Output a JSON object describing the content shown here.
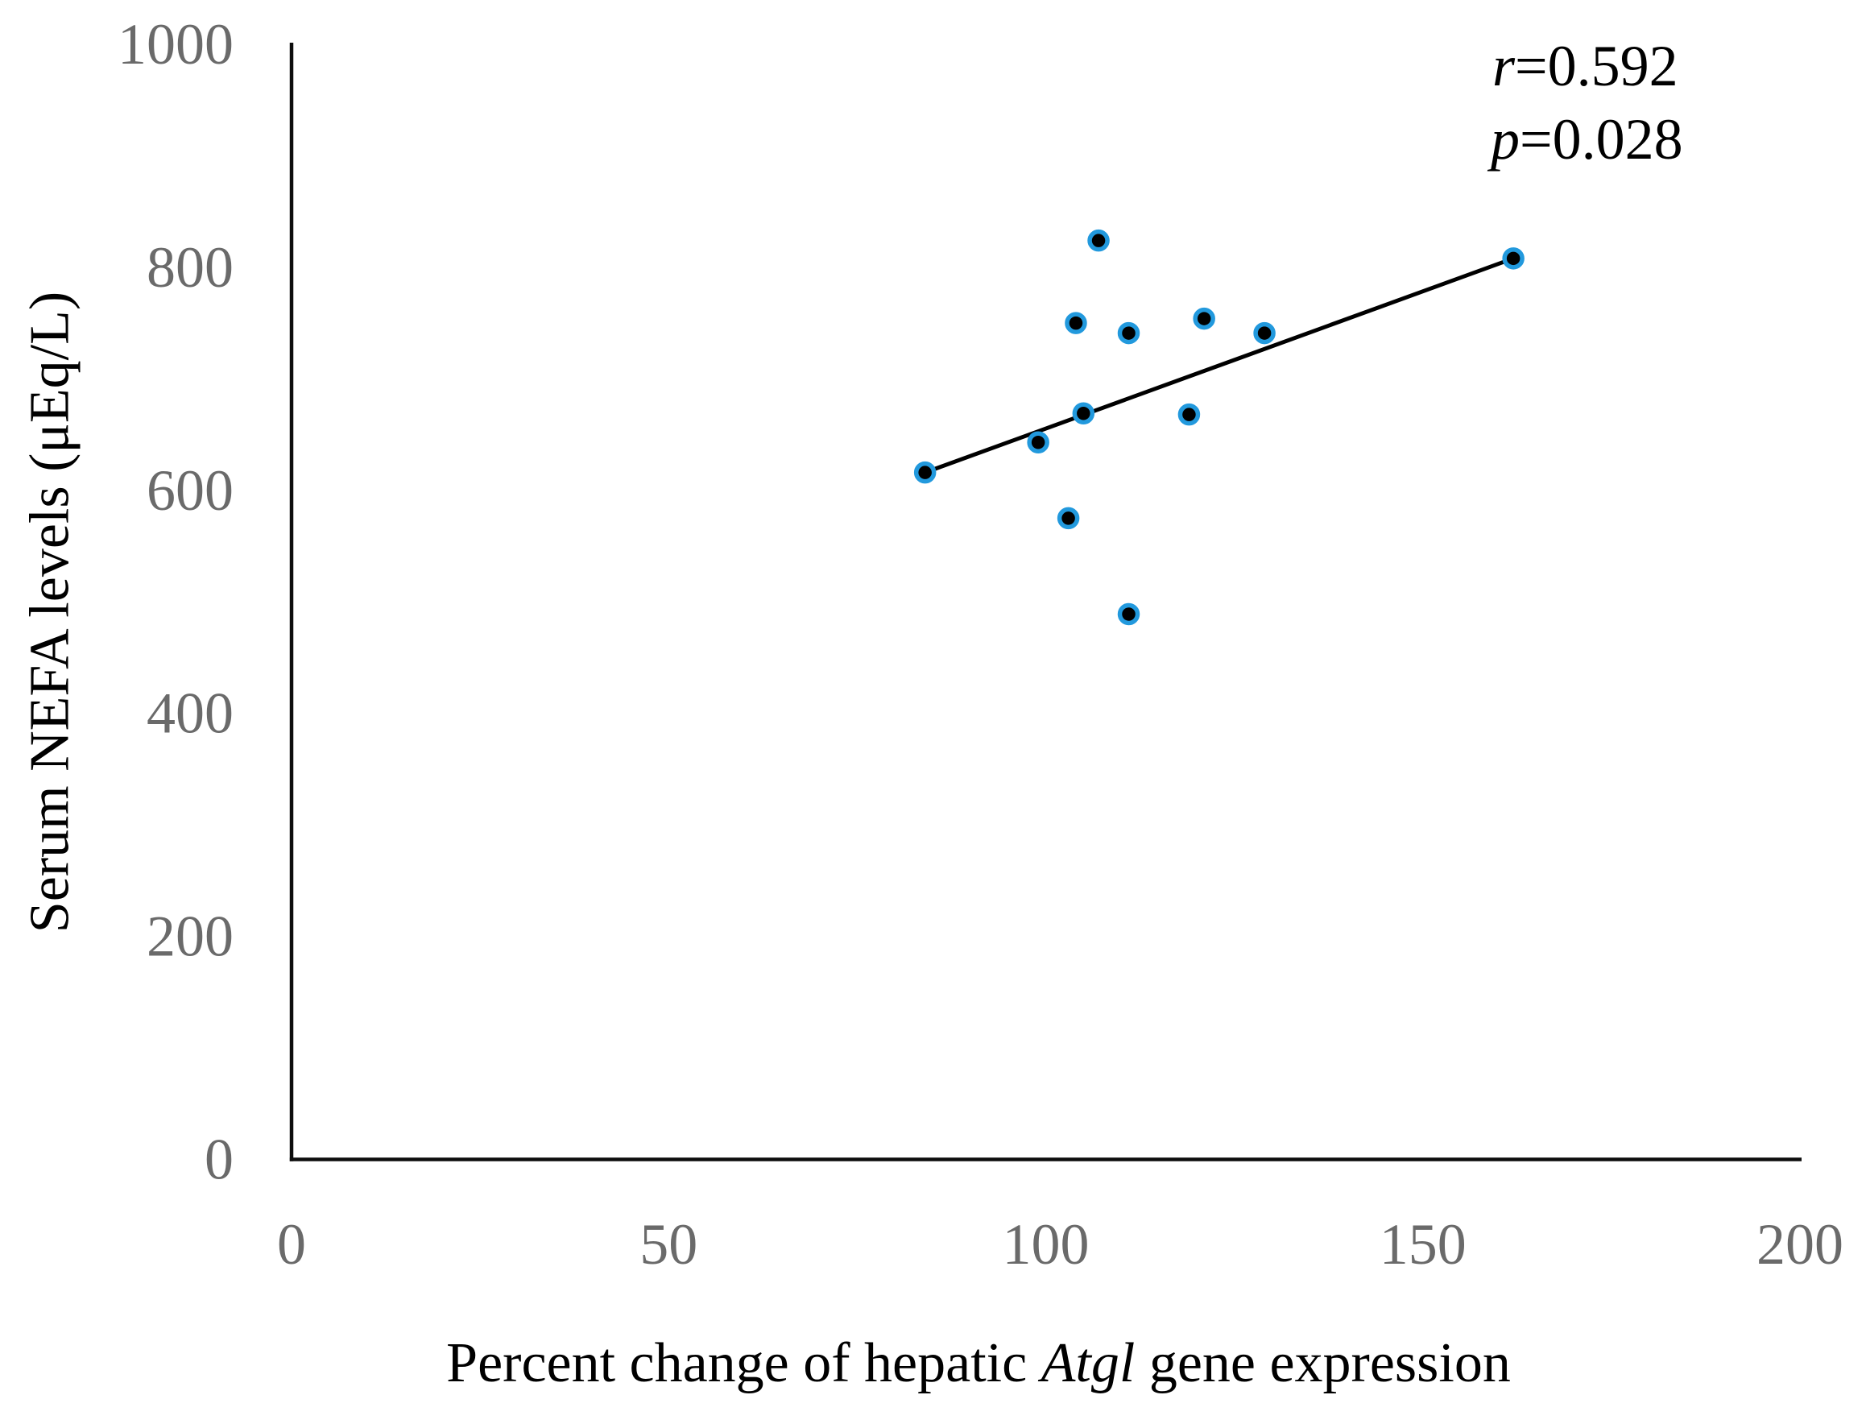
{
  "chart_data": {
    "type": "scatter",
    "title": "",
    "xlabel": "Percent change of hepatic Atgl gene expression",
    "xlabel_parts": {
      "pre": "Percent change of hepatic ",
      "italic": "Atgl",
      "post": " gene expression"
    },
    "ylabel": "Serum NEFA levels (μEq/L)",
    "xlim": [
      0,
      200
    ],
    "ylim": [
      0,
      1000
    ],
    "xticks": [
      0,
      50,
      100,
      150,
      200
    ],
    "yticks": [
      0,
      200,
      400,
      600,
      800,
      1000
    ],
    "grid": false,
    "legend": false,
    "points": [
      {
        "x": 107,
        "y": 824
      },
      {
        "x": 104,
        "y": 750
      },
      {
        "x": 111,
        "y": 741
      },
      {
        "x": 121,
        "y": 754
      },
      {
        "x": 129,
        "y": 741
      },
      {
        "x": 105,
        "y": 669
      },
      {
        "x": 119,
        "y": 668
      },
      {
        "x": 99,
        "y": 643
      },
      {
        "x": 84,
        "y": 616
      },
      {
        "x": 103,
        "y": 575
      },
      {
        "x": 111,
        "y": 489
      },
      {
        "x": 162,
        "y": 808
      }
    ],
    "trendline": {
      "x1": 84,
      "y1": 616,
      "x2": 162,
      "y2": 808
    },
    "annotation": {
      "r_label": "r",
      "r_value": "=0.592",
      "p_label": "p",
      "p_value": "=0.028"
    },
    "colors": {
      "marker_fill": "#000000",
      "marker_edge": "#2299DD",
      "trendline": "#000000",
      "axis": "#0d0d0d",
      "tick_label": "#6a6a6a",
      "text": "#000000"
    }
  }
}
